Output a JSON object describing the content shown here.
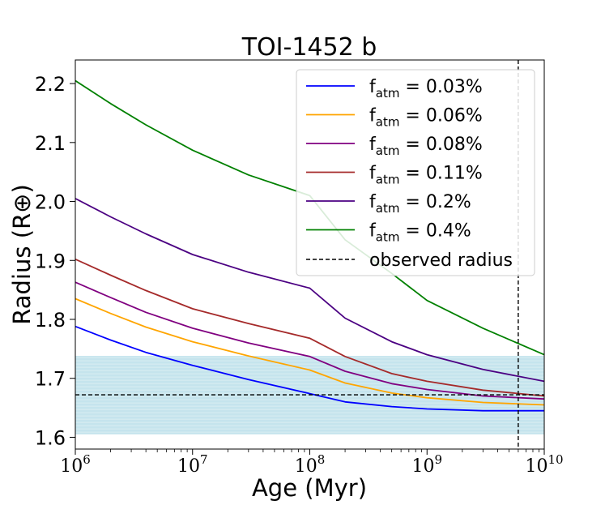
{
  "chart_data": {
    "type": "line",
    "title": "TOI-1452 b",
    "xlabel": "Age (Myr)",
    "ylabel": "Radius (R⊕)",
    "xscale": "log",
    "xlim": [
      1000000,
      10000000000
    ],
    "ylim": [
      1.58,
      2.24
    ],
    "x_ticks": [
      {
        "value": 1000000,
        "base": "10",
        "exp": "6"
      },
      {
        "value": 10000000,
        "base": "10",
        "exp": "7"
      },
      {
        "value": 100000000,
        "base": "10",
        "exp": "8"
      },
      {
        "value": 1000000000,
        "base": "10",
        "exp": "9"
      },
      {
        "value": 10000000000,
        "base": "10",
        "exp": "10"
      }
    ],
    "y_ticks": [
      {
        "value": 1.6,
        "label": "1.6"
      },
      {
        "value": 1.7,
        "label": "1.7"
      },
      {
        "value": 1.8,
        "label": "1.8"
      },
      {
        "value": 1.9,
        "label": "1.9"
      },
      {
        "value": 2.0,
        "label": "2.0"
      },
      {
        "value": 2.1,
        "label": "2.1"
      },
      {
        "value": 2.2,
        "label": "2.2"
      }
    ],
    "x": [
      1000000,
      2000000,
      4000000,
      10000000,
      30000000,
      100000000,
      200000000,
      500000000,
      1000000000,
      3000000000,
      10000000000
    ],
    "series": [
      {
        "name_base": "f",
        "name_sub": "atm",
        "name_value": " = 0.03%",
        "color": "#0000ff",
        "values": [
          1.788,
          1.765,
          1.744,
          1.722,
          1.698,
          1.674,
          1.66,
          1.652,
          1.648,
          1.645,
          1.645
        ]
      },
      {
        "name_base": "f",
        "name_sub": "atm",
        "name_value": " = 0.06%",
        "color": "#ffa500",
        "values": [
          1.835,
          1.81,
          1.787,
          1.762,
          1.738,
          1.714,
          1.692,
          1.675,
          1.667,
          1.659,
          1.655
        ]
      },
      {
        "name_base": "f",
        "name_sub": "atm",
        "name_value": " = 0.08%",
        "color": "#800080",
        "values": [
          1.863,
          1.837,
          1.812,
          1.785,
          1.76,
          1.737,
          1.712,
          1.691,
          1.681,
          1.67,
          1.665
        ]
      },
      {
        "name_base": "f",
        "name_sub": "atm",
        "name_value": " = 0.11%",
        "color": "#a52a2a",
        "values": [
          1.902,
          1.875,
          1.849,
          1.818,
          1.793,
          1.768,
          1.737,
          1.708,
          1.695,
          1.68,
          1.67
        ]
      },
      {
        "name_base": "f",
        "name_sub": "atm",
        "name_value": " = 0.2%",
        "color": "#4b0082",
        "values": [
          2.005,
          1.974,
          1.945,
          1.91,
          1.88,
          1.853,
          1.802,
          1.762,
          1.74,
          1.715,
          1.695
        ]
      },
      {
        "name_base": "f",
        "name_sub": "atm",
        "name_value": " = 0.4%",
        "color": "#008000",
        "values": [
          2.205,
          2.166,
          2.13,
          2.087,
          2.045,
          2.01,
          1.935,
          1.878,
          1.832,
          1.785,
          1.74
        ]
      }
    ],
    "observed_radius": {
      "label": "observed radius",
      "value": 1.672,
      "band": [
        1.605,
        1.738
      ],
      "band_color": "#add8e6"
    },
    "age_line": 6000000000,
    "legend": "upper-right"
  }
}
